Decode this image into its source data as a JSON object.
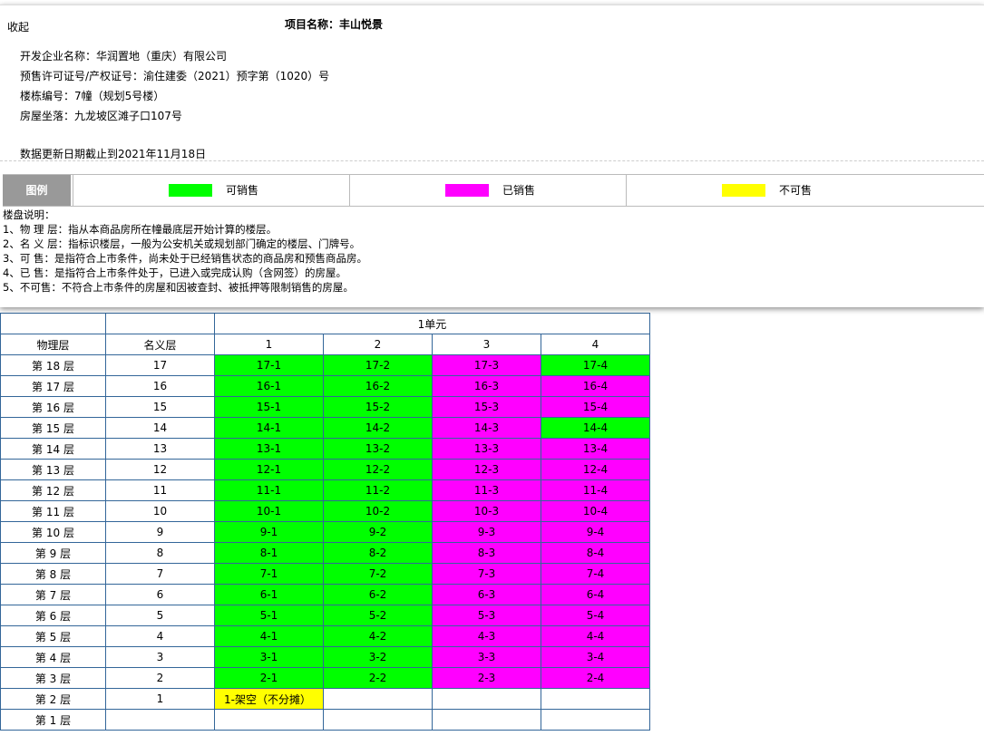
{
  "panel": {
    "collapse": "收起",
    "title": "项目名称：丰山悦景",
    "info": [
      "开发企业名称：华润置地（重庆）有限公司",
      "预售许可证号/产权证号：渝住建委（2021）预字第（1020）号",
      "楼栋编号：7幢（规划5号楼）",
      "房屋坐落：九龙坡区滩子口107号"
    ],
    "update": "数据更新日期截止到2021年11月18日"
  },
  "legend": {
    "title": "图例",
    "items": [
      {
        "label": "可销售",
        "color": "#00ff00"
      },
      {
        "label": "已销售",
        "color": "#ff00ff"
      },
      {
        "label": "不可售",
        "color": "#ffff00"
      }
    ]
  },
  "notes": {
    "title": "楼盘说明：",
    "items": [
      "1、物 理 层：指从本商品房所在幢最底层开始计算的楼层。",
      "2、名 义 层：指标识楼层，一般为公安机关或规划部门确定的楼层、门牌号。",
      "3、可 售：是指符合上市条件，尚未处于已经销售状态的商品房和预售商品房。",
      "4、已 售：是指符合上市条件处于，已进入或完成认购（含网签）的房屋。",
      "5、不可售：不符合上市条件的房屋和因被查封、被抵押等限制销售的房屋。"
    ]
  },
  "table": {
    "unit": "1单元",
    "headers": [
      "物理层",
      "名义层",
      "1",
      "2",
      "3",
      "4"
    ],
    "rows": [
      {
        "floor": "第 18 层",
        "name": "17",
        "rooms": [
          {
            "label": "17-1",
            "color": "#00ff00"
          },
          {
            "label": "17-2",
            "color": "#00ff00"
          },
          {
            "label": "17-3",
            "color": "#ff00ff"
          },
          {
            "label": "17-4",
            "color": "#00ff00"
          }
        ]
      },
      {
        "floor": "第 17 层",
        "name": "16",
        "rooms": [
          {
            "label": "16-1",
            "color": "#00ff00"
          },
          {
            "label": "16-2",
            "color": "#00ff00"
          },
          {
            "label": "16-3",
            "color": "#ff00ff"
          },
          {
            "label": "16-4",
            "color": "#ff00ff"
          }
        ]
      },
      {
        "floor": "第 16 层",
        "name": "15",
        "rooms": [
          {
            "label": "15-1",
            "color": "#00ff00"
          },
          {
            "label": "15-2",
            "color": "#00ff00"
          },
          {
            "label": "15-3",
            "color": "#ff00ff"
          },
          {
            "label": "15-4",
            "color": "#ff00ff"
          }
        ]
      },
      {
        "floor": "第 15 层",
        "name": "14",
        "rooms": [
          {
            "label": "14-1",
            "color": "#00ff00"
          },
          {
            "label": "14-2",
            "color": "#00ff00"
          },
          {
            "label": "14-3",
            "color": "#ff00ff"
          },
          {
            "label": "14-4",
            "color": "#00ff00"
          }
        ]
      },
      {
        "floor": "第 14 层",
        "name": "13",
        "rooms": [
          {
            "label": "13-1",
            "color": "#00ff00"
          },
          {
            "label": "13-2",
            "color": "#00ff00"
          },
          {
            "label": "13-3",
            "color": "#ff00ff"
          },
          {
            "label": "13-4",
            "color": "#ff00ff"
          }
        ]
      },
      {
        "floor": "第 13 层",
        "name": "12",
        "rooms": [
          {
            "label": "12-1",
            "color": "#00ff00"
          },
          {
            "label": "12-2",
            "color": "#00ff00"
          },
          {
            "label": "12-3",
            "color": "#ff00ff"
          },
          {
            "label": "12-4",
            "color": "#ff00ff"
          }
        ]
      },
      {
        "floor": "第 12 层",
        "name": "11",
        "rooms": [
          {
            "label": "11-1",
            "color": "#00ff00"
          },
          {
            "label": "11-2",
            "color": "#00ff00"
          },
          {
            "label": "11-3",
            "color": "#ff00ff"
          },
          {
            "label": "11-4",
            "color": "#ff00ff"
          }
        ]
      },
      {
        "floor": "第 11 层",
        "name": "10",
        "rooms": [
          {
            "label": "10-1",
            "color": "#00ff00"
          },
          {
            "label": "10-2",
            "color": "#00ff00"
          },
          {
            "label": "10-3",
            "color": "#ff00ff"
          },
          {
            "label": "10-4",
            "color": "#ff00ff"
          }
        ]
      },
      {
        "floor": "第 10 层",
        "name": "9",
        "rooms": [
          {
            "label": "9-1",
            "color": "#00ff00"
          },
          {
            "label": "9-2",
            "color": "#00ff00"
          },
          {
            "label": "9-3",
            "color": "#ff00ff"
          },
          {
            "label": "9-4",
            "color": "#ff00ff"
          }
        ]
      },
      {
        "floor": "第 9 层",
        "name": "8",
        "rooms": [
          {
            "label": "8-1",
            "color": "#00ff00"
          },
          {
            "label": "8-2",
            "color": "#00ff00"
          },
          {
            "label": "8-3",
            "color": "#ff00ff"
          },
          {
            "label": "8-4",
            "color": "#ff00ff"
          }
        ]
      },
      {
        "floor": "第 8 层",
        "name": "7",
        "rooms": [
          {
            "label": "7-1",
            "color": "#00ff00"
          },
          {
            "label": "7-2",
            "color": "#00ff00"
          },
          {
            "label": "7-3",
            "color": "#ff00ff"
          },
          {
            "label": "7-4",
            "color": "#ff00ff"
          }
        ]
      },
      {
        "floor": "第 7 层",
        "name": "6",
        "rooms": [
          {
            "label": "6-1",
            "color": "#00ff00"
          },
          {
            "label": "6-2",
            "color": "#00ff00"
          },
          {
            "label": "6-3",
            "color": "#ff00ff"
          },
          {
            "label": "6-4",
            "color": "#ff00ff"
          }
        ]
      },
      {
        "floor": "第 6 层",
        "name": "5",
        "rooms": [
          {
            "label": "5-1",
            "color": "#00ff00"
          },
          {
            "label": "5-2",
            "color": "#00ff00"
          },
          {
            "label": "5-3",
            "color": "#ff00ff"
          },
          {
            "label": "5-4",
            "color": "#ff00ff"
          }
        ]
      },
      {
        "floor": "第 5 层",
        "name": "4",
        "rooms": [
          {
            "label": "4-1",
            "color": "#00ff00"
          },
          {
            "label": "4-2",
            "color": "#00ff00"
          },
          {
            "label": "4-3",
            "color": "#ff00ff"
          },
          {
            "label": "4-4",
            "color": "#ff00ff"
          }
        ]
      },
      {
        "floor": "第 4 层",
        "name": "3",
        "rooms": [
          {
            "label": "3-1",
            "color": "#00ff00"
          },
          {
            "label": "3-2",
            "color": "#00ff00"
          },
          {
            "label": "3-3",
            "color": "#ff00ff"
          },
          {
            "label": "3-4",
            "color": "#ff00ff"
          }
        ]
      },
      {
        "floor": "第 3 层",
        "name": "2",
        "rooms": [
          {
            "label": "2-1",
            "color": "#00ff00"
          },
          {
            "label": "2-2",
            "color": "#00ff00"
          },
          {
            "label": "2-3",
            "color": "#ff00ff"
          },
          {
            "label": "2-4",
            "color": "#ff00ff"
          }
        ]
      },
      {
        "floor": "第 2 层",
        "name": "1",
        "rooms": [
          {
            "label": "1-架空（不分摊）",
            "color": "#ffff00"
          },
          null,
          null,
          null
        ]
      },
      {
        "floor": "第 1 层",
        "name": null,
        "rooms": [
          null,
          null,
          null,
          null
        ]
      }
    ]
  }
}
